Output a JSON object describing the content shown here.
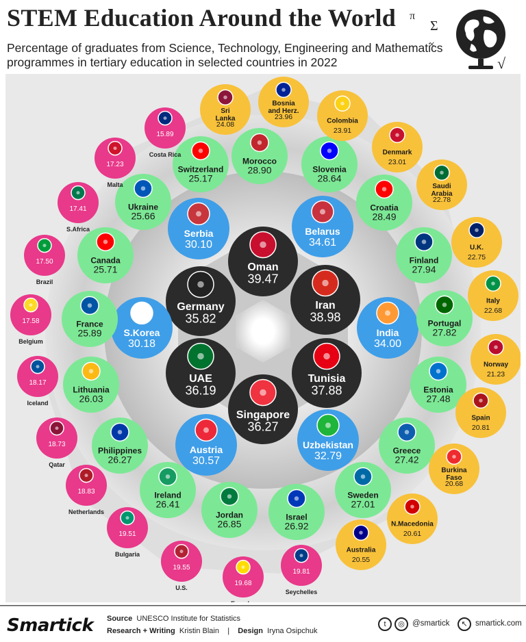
{
  "title": "STEM Education Around the World",
  "subtitle": "Percentage of graduates from Science, Technology, Engineering and Mathematics programmes in tertiary education in selected countries in 2022",
  "deco_symbols": [
    "π",
    "Σ",
    "×",
    "√"
  ],
  "colors": {
    "black": "#2b2b2b",
    "blue": "#3f9ee8",
    "green": "#7ce895",
    "yellow": "#f8c13a",
    "pink": "#e8398a",
    "ring_bg": "#d3d3d3",
    "panel_bg": "#e8e8e8"
  },
  "chart_data": {
    "type": "bubble",
    "unit": "%",
    "categories": [
      {
        "name": "Oman",
        "value": 39.47,
        "tier": "black"
      },
      {
        "name": "Iran",
        "value": 38.98,
        "tier": "black"
      },
      {
        "name": "Tunisia",
        "value": 37.88,
        "tier": "black"
      },
      {
        "name": "Singapore",
        "value": 36.27,
        "tier": "black"
      },
      {
        "name": "UAE",
        "value": 36.19,
        "tier": "black"
      },
      {
        "name": "Germany",
        "value": 35.82,
        "tier": "black"
      },
      {
        "name": "Belarus",
        "value": 34.61,
        "tier": "blue"
      },
      {
        "name": "India",
        "value": 34.0,
        "tier": "blue"
      },
      {
        "name": "Uzbekistan",
        "value": 32.79,
        "tier": "blue"
      },
      {
        "name": "Austria",
        "value": 30.57,
        "tier": "blue"
      },
      {
        "name": "S.Korea",
        "value": 30.18,
        "tier": "blue"
      },
      {
        "name": "Serbia",
        "value": 30.1,
        "tier": "blue"
      },
      {
        "name": "Morocco",
        "value": 28.9,
        "tier": "green"
      },
      {
        "name": "Slovenia",
        "value": 28.64,
        "tier": "green"
      },
      {
        "name": "Croatia",
        "value": 28.49,
        "tier": "green"
      },
      {
        "name": "Finland",
        "value": 27.94,
        "tier": "green"
      },
      {
        "name": "Portugal",
        "value": 27.82,
        "tier": "green"
      },
      {
        "name": "Estonia",
        "value": 27.48,
        "tier": "green"
      },
      {
        "name": "Greece",
        "value": 27.42,
        "tier": "green"
      },
      {
        "name": "Sweden",
        "value": 27.01,
        "tier": "green"
      },
      {
        "name": "Israel",
        "value": 26.92,
        "tier": "green"
      },
      {
        "name": "Jordan",
        "value": 26.85,
        "tier": "green"
      },
      {
        "name": "Ireland",
        "value": 26.41,
        "tier": "green"
      },
      {
        "name": "Philippines",
        "value": 26.27,
        "tier": "green"
      },
      {
        "name": "Lithuania",
        "value": 26.03,
        "tier": "green"
      },
      {
        "name": "France",
        "value": 25.89,
        "tier": "green"
      },
      {
        "name": "Canada",
        "value": 25.71,
        "tier": "green"
      },
      {
        "name": "Ukraine",
        "value": 25.66,
        "tier": "green"
      },
      {
        "name": "Switzerland",
        "value": 25.17,
        "tier": "green"
      },
      {
        "name": "Sri Lanka",
        "value": 24.08,
        "tier": "yellow"
      },
      {
        "name": "Bosnia and Herz.",
        "value": 23.96,
        "tier": "yellow"
      },
      {
        "name": "Colombia",
        "value": 23.91,
        "tier": "yellow"
      },
      {
        "name": "Denmark",
        "value": 23.01,
        "tier": "yellow"
      },
      {
        "name": "Saudi Arabia",
        "value": 22.78,
        "tier": "yellow"
      },
      {
        "name": "U.K.",
        "value": 22.75,
        "tier": "yellow"
      },
      {
        "name": "Italy",
        "value": 22.68,
        "tier": "yellow"
      },
      {
        "name": "Norway",
        "value": 21.23,
        "tier": "yellow"
      },
      {
        "name": "Spain",
        "value": 20.81,
        "tier": "yellow"
      },
      {
        "name": "Burkina Faso",
        "value": 20.68,
        "tier": "yellow"
      },
      {
        "name": "N.Macedonia",
        "value": 20.61,
        "tier": "yellow"
      },
      {
        "name": "Australia",
        "value": 20.55,
        "tier": "yellow"
      },
      {
        "name": "Seychelles",
        "value": 19.81,
        "tier": "pink"
      },
      {
        "name": "Ecuador",
        "value": 19.68,
        "tier": "pink"
      },
      {
        "name": "U.S.",
        "value": 19.55,
        "tier": "pink"
      },
      {
        "name": "Bulgaria",
        "value": 19.51,
        "tier": "pink"
      },
      {
        "name": "Netherlands",
        "value": 18.83,
        "tier": "pink"
      },
      {
        "name": "Qatar",
        "value": 18.73,
        "tier": "pink"
      },
      {
        "name": "Iceland",
        "value": 18.17,
        "tier": "pink"
      },
      {
        "name": "Belgium",
        "value": 17.58,
        "tier": "pink"
      },
      {
        "name": "Brazil",
        "value": 17.5,
        "tier": "pink"
      },
      {
        "name": "S.Africa",
        "value": 17.41,
        "tier": "pink"
      },
      {
        "name": "Malta",
        "value": 17.23,
        "tier": "pink"
      },
      {
        "name": "Costa Rica",
        "value": 15.89,
        "tier": "pink"
      }
    ]
  },
  "footer": {
    "source_label": "Source",
    "source_text": "UNESCO Institute for Statistics",
    "research_label": "Research + Writing",
    "research_text": "Kristin Blain",
    "separator": "|",
    "design_label": "Design",
    "design_text": "Iryna Osipchuk",
    "social_handle": "@smartick",
    "website": "smartick.com",
    "logo_text": "Smartick"
  }
}
